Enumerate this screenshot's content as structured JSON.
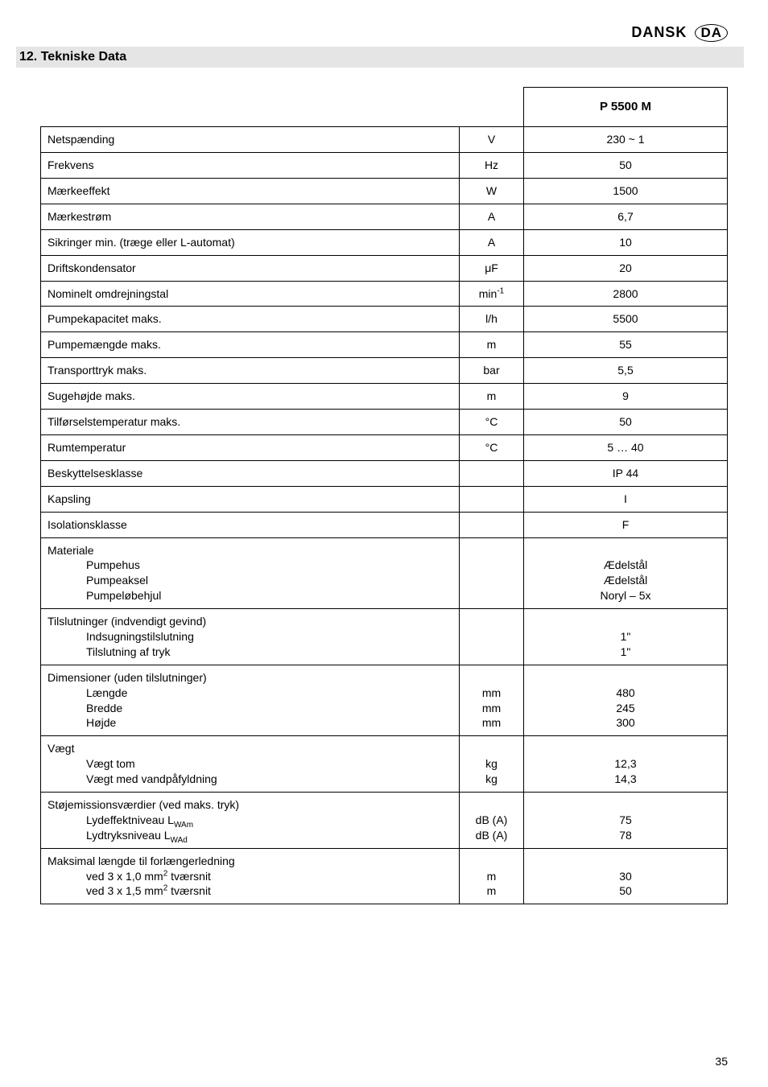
{
  "header": {
    "lang": "DANSK",
    "code": "DA"
  },
  "section": {
    "num": "12.",
    "title": "Tekniske Data"
  },
  "model_header": "P 5500 M",
  "rows": [
    {
      "label": "Netspænding",
      "unit": "V",
      "value": "230 ~ 1"
    },
    {
      "label": "Frekvens",
      "unit": "Hz",
      "value": "50"
    },
    {
      "label": "Mærkeeffekt",
      "unit": "W",
      "value": "1500"
    },
    {
      "label": "Mærkestrøm",
      "unit": "A",
      "value": "6,7"
    },
    {
      "label": "Sikringer min. (træge eller L-automat)",
      "unit": "A",
      "value": "10"
    },
    {
      "label": "Driftskondensator",
      "unit": "μF",
      "value": "20"
    },
    {
      "label": "Nominelt omdrejningstal",
      "unit_html": "min<sup>-1</sup>",
      "value": "2800"
    },
    {
      "label": "Pumpekapacitet maks.",
      "unit": "l/h",
      "value": "5500"
    },
    {
      "label": "Pumpemængde maks.",
      "unit": "m",
      "value": "55"
    },
    {
      "label": "Transporttryk maks.",
      "unit": "bar",
      "value": "5,5"
    },
    {
      "label": "Sugehøjde maks.",
      "unit": "m",
      "value": "9"
    },
    {
      "label": "Tilførselstemperatur maks.",
      "unit": "°C",
      "value": "50"
    },
    {
      "label": "Rumtemperatur",
      "unit": "°C",
      "value": "5 … 40"
    },
    {
      "label": "Beskyttelsesklasse",
      "unit": "",
      "value": "IP 44"
    },
    {
      "label": "Kapsling",
      "unit": "",
      "value": "I"
    },
    {
      "label": "Isolationsklasse",
      "unit": "",
      "value": "F"
    }
  ],
  "materiale": {
    "label": "Materiale",
    "items": [
      "Pumpehus",
      "Pumpeaksel",
      "Pumpeløbehjul"
    ],
    "values": [
      "Ædelstål",
      "Ædelstål",
      "Noryl – 5x"
    ]
  },
  "tilslutninger": {
    "label": "Tilslutninger (indvendigt gevind)",
    "items": [
      "Indsugningstilslutning",
      "Tilslutning af tryk"
    ],
    "values": [
      "1\"",
      "1\""
    ]
  },
  "dimensioner": {
    "label": "Dimensioner (uden tilslutninger)",
    "items": [
      "Længde",
      "Bredde",
      "Højde"
    ],
    "units": [
      "mm",
      "mm",
      "mm"
    ],
    "values": [
      "480",
      "245",
      "300"
    ]
  },
  "vaegt": {
    "label": "Vægt",
    "items": [
      "Vægt tom",
      "Vægt med vandpåfyldning"
    ],
    "units": [
      "kg",
      "kg"
    ],
    "values": [
      "12,3",
      "14,3"
    ]
  },
  "stoj": {
    "label": "Støjemissionsværdier (ved maks. tryk)",
    "items_html": [
      "Lydeffektniveau L<sub>WAm</sub>",
      "Lydtryksniveau L<sub>WAd</sub>"
    ],
    "units": [
      "dB (A)",
      "dB (A)"
    ],
    "values": [
      "75",
      "78"
    ]
  },
  "forlaenger": {
    "label": "Maksimal længde til forlængerledning",
    "items_html": [
      "ved 3 x 1,0 mm<sup>2</sup> tværsnit",
      "ved 3 x 1,5 mm<sup>2</sup> tværsnit"
    ],
    "units": [
      "m",
      "m"
    ],
    "values": [
      "30",
      "50"
    ]
  },
  "pagenum": "35"
}
